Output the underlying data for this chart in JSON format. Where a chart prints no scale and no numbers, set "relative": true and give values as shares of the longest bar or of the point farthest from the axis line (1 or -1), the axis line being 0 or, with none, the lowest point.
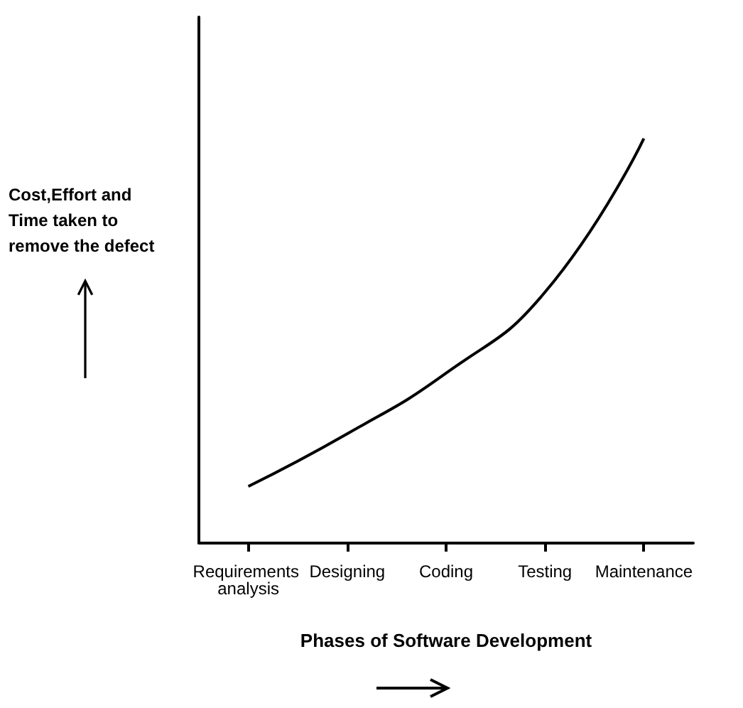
{
  "chart_data": {
    "type": "line",
    "relative": true,
    "xlabel": "Phases of Software Development",
    "ylabel": "Cost,Effort and Time taken to remove the defect",
    "categories": [
      "Requirements analysis",
      "Designing",
      "Coding",
      "Testing",
      "Maintenance"
    ],
    "series": [
      {
        "color": "#000000",
        "values": [
          0.14,
          0.27,
          0.42,
          0.62,
          1
        ]
      }
    ]
  }
}
